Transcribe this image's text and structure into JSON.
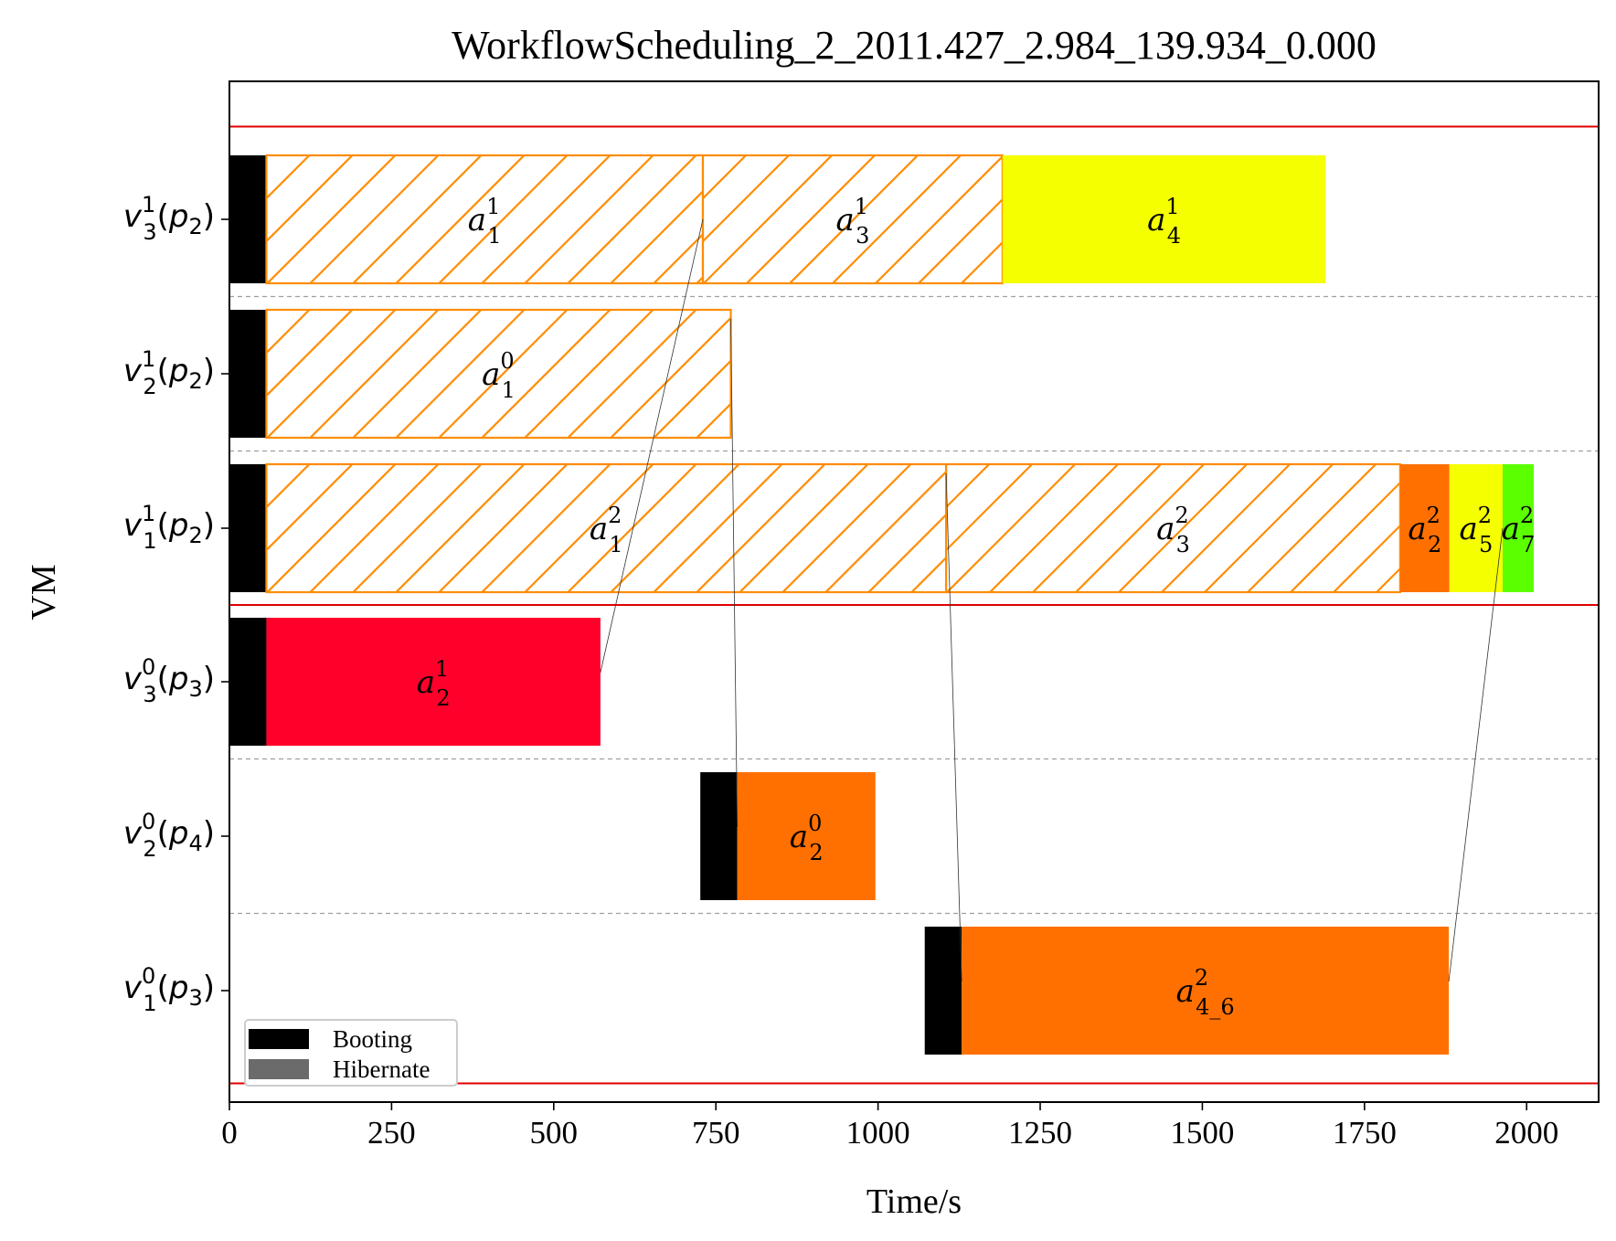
{
  "chart_data": {
    "type": "gantt",
    "title": "WorkflowScheduling_2_2011.427_2.984_139.934_0.000",
    "xlabel": "Time/s",
    "ylabel": "VM",
    "xlim": [
      0,
      2111
    ],
    "xticks": [
      0,
      250,
      500,
      750,
      1000,
      1250,
      1500,
      1750,
      2000
    ],
    "grid": false,
    "legend_position": "lower-left",
    "legend": [
      {
        "label": "Booting",
        "color": "#000000"
      },
      {
        "label": "Hibernate",
        "color": "#6b6b6b"
      }
    ],
    "rows": [
      {
        "base": "v",
        "sub": "3",
        "sup": "1",
        "param": "p",
        "param_sub": "2"
      },
      {
        "base": "v",
        "sub": "2",
        "sup": "1",
        "param": "p",
        "param_sub": "2"
      },
      {
        "base": "v",
        "sub": "1",
        "sup": "1",
        "param": "p",
        "param_sub": "2"
      },
      {
        "base": "v",
        "sub": "3",
        "sup": "0",
        "param": "p",
        "param_sub": "3"
      },
      {
        "base": "v",
        "sub": "2",
        "sup": "0",
        "param": "p",
        "param_sub": "4"
      },
      {
        "base": "v",
        "sub": "1",
        "sup": "0",
        "param": "p",
        "param_sub": "3"
      }
    ],
    "group_separators_after_rows": [
      2
    ],
    "booting": [
      {
        "row": 0,
        "start": 0,
        "end": 57
      },
      {
        "row": 1,
        "start": 0,
        "end": 57
      },
      {
        "row": 2,
        "start": 0,
        "end": 57
      },
      {
        "row": 3,
        "start": 0,
        "end": 57
      },
      {
        "row": 4,
        "start": 726,
        "end": 783
      },
      {
        "row": 5,
        "start": 1072,
        "end": 1129
      }
    ],
    "tasks": [
      {
        "row": 0,
        "start": 57,
        "end": 730,
        "label": "a",
        "sub": "1",
        "sup": "1",
        "hatched": true,
        "color": "#ff8c00"
      },
      {
        "row": 0,
        "start": 730,
        "end": 1192,
        "label": "a",
        "sub": "3",
        "sup": "1",
        "hatched": true,
        "color": "#ff8c00"
      },
      {
        "row": 0,
        "start": 1192,
        "end": 1690,
        "label": "a",
        "sub": "4",
        "sup": "1",
        "hatched": false,
        "color": "#f5ff00"
      },
      {
        "row": 1,
        "start": 57,
        "end": 773,
        "label": "a",
        "sub": "1",
        "sup": "0",
        "hatched": true,
        "color": "#ff8c00"
      },
      {
        "row": 2,
        "start": 57,
        "end": 1105,
        "label": "a",
        "sub": "1",
        "sup": "2",
        "hatched": true,
        "color": "#ff8c00"
      },
      {
        "row": 2,
        "start": 1105,
        "end": 1805,
        "label": "a",
        "sub": "3",
        "sup": "2",
        "hatched": true,
        "color": "#ff8c00"
      },
      {
        "row": 2,
        "start": 1805,
        "end": 1881,
        "label": "a",
        "sub": "2",
        "sup": "2",
        "hatched": false,
        "color": "#ff7000"
      },
      {
        "row": 2,
        "start": 1881,
        "end": 1963,
        "label": "a",
        "sub": "5",
        "sup": "2",
        "hatched": false,
        "color": "#f5ff00"
      },
      {
        "row": 2,
        "start": 1963,
        "end": 2011,
        "label": "a",
        "sub": "7",
        "sup": "2",
        "hatched": false,
        "color": "#5cff00"
      },
      {
        "row": 3,
        "start": 57,
        "end": 572,
        "label": "a",
        "sub": "2",
        "sup": "1",
        "hatched": false,
        "color": "#ff002a"
      },
      {
        "row": 4,
        "start": 783,
        "end": 996,
        "label": "a",
        "sub": "2",
        "sup": "0",
        "hatched": false,
        "color": "#ff7000"
      },
      {
        "row": 5,
        "start": 1129,
        "end": 1880,
        "label": "a",
        "sub": "4_6",
        "sup": "2",
        "hatched": false,
        "color": "#ff7000"
      }
    ],
    "dependencies": [
      {
        "from_row": 3,
        "from_time": 572,
        "to_row": 0,
        "to_time": 730
      },
      {
        "from_row": 1,
        "from_time": 773,
        "to_row": 4,
        "to_time": 783
      },
      {
        "from_row": 2,
        "from_time": 1105,
        "to_row": 5,
        "to_time": 1129
      },
      {
        "from_row": 5,
        "from_time": 1880,
        "to_row": 2,
        "to_time": 1963
      }
    ]
  }
}
